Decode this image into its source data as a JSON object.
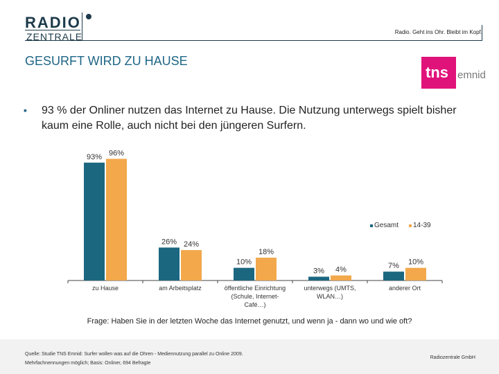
{
  "header": {
    "logo_line1": "RADIO",
    "logo_line2": "ZENTRALE",
    "tagline": "Radio. Geht ins Ohr. Bleibt im Kopf.",
    "title": "GESURFT WIRD ZU HAUSE",
    "tns_logo_word": "tns",
    "tns_logo_suffix": "emnid"
  },
  "bullet": {
    "marker": "▪",
    "text": "93 % der Onliner nutzen das Internet zu Hause. Die Nutzung unterwegs spielt bisher kaum eine Rolle, auch nicht bei den jüngeren Surfern."
  },
  "colors": {
    "gesamt": "#1c6780",
    "age_14_39": "#f2a84b",
    "title": "#1e6585"
  },
  "chart_data": {
    "type": "bar",
    "categories": [
      [
        "zu Hause"
      ],
      [
        "am Arbeitsplatz"
      ],
      [
        "öffentliche Einrichtung",
        "(Schule, Internet-",
        "Café…)"
      ],
      [
        "unterwegs (UMTS,",
        "WLAN…)"
      ],
      [
        "anderer Ort"
      ]
    ],
    "series": [
      {
        "name": "Gesamt",
        "values": [
          93,
          26,
          10,
          3,
          7
        ],
        "labels": [
          "93%",
          "26%",
          "10%",
          "3%",
          "7%"
        ]
      },
      {
        "name": "14-39",
        "values": [
          96,
          24,
          18,
          4,
          10
        ],
        "labels": [
          "96%",
          "24%",
          "18%",
          "4%",
          "10%"
        ]
      }
    ],
    "ylim": [
      0,
      100
    ],
    "legend_position": "right",
    "grid": false
  },
  "question": "Frage: Haben Sie in der letzten Woche das Internet genutzt, und wenn ja - dann wo und wie oft?",
  "footer": {
    "source_line1": "Quelle: Studie TNS Emnid: Surfer wollen was auf die Ohren - Mediennutzung parallel zu Online 2009.",
    "source_line2": "Mehrfachnennungen möglich; Basis: Onliner, 694 Befragte",
    "company": "Radiozentrale GmbH"
  }
}
